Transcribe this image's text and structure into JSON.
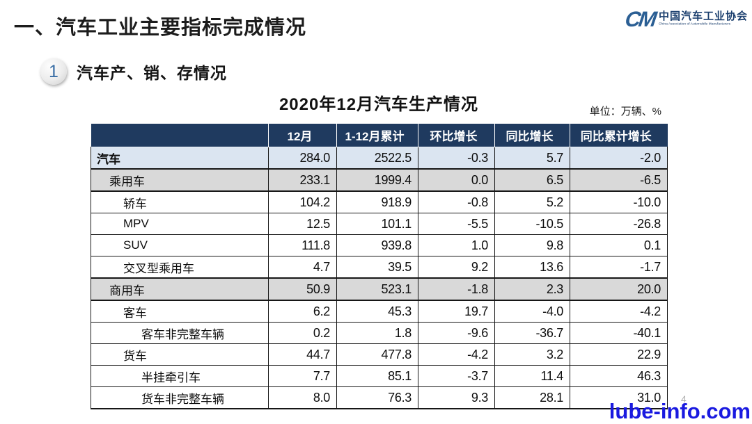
{
  "slide": {
    "title": "一、汽车工业主要指标完成情况",
    "section": {
      "number": "1",
      "title": "汽车产、销、存情况"
    }
  },
  "logo": {
    "mark": "CM",
    "name_cn": "中国汽车工业协会",
    "name_en": "China Association of Automobile Manufacturers"
  },
  "table": {
    "title": "2020年12月汽车生产情况",
    "unit_note": "单位：万辆、%",
    "columns": [
      "",
      "12月",
      "1-12月累计",
      "环比增长",
      "同比增长",
      "同比累计增长"
    ],
    "rows": [
      {
        "label": "汽车",
        "indent": 0,
        "emphasis": "blue",
        "values": [
          "284.0",
          "2522.5",
          "-0.3",
          "5.7",
          "-2.0"
        ]
      },
      {
        "label": "乘用车",
        "indent": 1,
        "emphasis": "gray",
        "values": [
          "233.1",
          "1999.4",
          "0.0",
          "6.5",
          "-6.5"
        ]
      },
      {
        "label": "轿车",
        "indent": 2,
        "emphasis": "",
        "values": [
          "104.2",
          "918.9",
          "-0.8",
          "5.2",
          "-10.0"
        ]
      },
      {
        "label": "MPV",
        "indent": 2,
        "emphasis": "",
        "values": [
          "12.5",
          "101.1",
          "-5.5",
          "-10.5",
          "-26.8"
        ]
      },
      {
        "label": "SUV",
        "indent": 2,
        "emphasis": "",
        "values": [
          "111.8",
          "939.8",
          "1.0",
          "9.8",
          "0.1"
        ]
      },
      {
        "label": "交叉型乘用车",
        "indent": 2,
        "emphasis": "",
        "values": [
          "4.7",
          "39.5",
          "9.2",
          "13.6",
          "-1.7"
        ]
      },
      {
        "label": "商用车",
        "indent": 1,
        "emphasis": "gray",
        "values": [
          "50.9",
          "523.1",
          "-1.8",
          "2.3",
          "20.0"
        ]
      },
      {
        "label": "客车",
        "indent": 2,
        "emphasis": "",
        "values": [
          "6.2",
          "45.3",
          "19.7",
          "-4.0",
          "-4.2"
        ]
      },
      {
        "label": "客车非完整车辆",
        "indent": 3,
        "emphasis": "",
        "values": [
          "0.2",
          "1.8",
          "-9.6",
          "-36.7",
          "-40.1"
        ]
      },
      {
        "label": "货车",
        "indent": 2,
        "emphasis": "",
        "values": [
          "44.7",
          "477.8",
          "-4.2",
          "3.2",
          "22.9"
        ]
      },
      {
        "label": "半挂牵引车",
        "indent": 3,
        "emphasis": "",
        "values": [
          "7.7",
          "85.1",
          "-3.7",
          "11.4",
          "46.3"
        ]
      },
      {
        "label": "货车非完整车辆",
        "indent": 3,
        "emphasis": "",
        "values": [
          "8.0",
          "76.3",
          "9.3",
          "28.1",
          "31.0"
        ]
      }
    ]
  },
  "footer": {
    "page_number": "4",
    "watermark": "lube-info.com"
  },
  "colors": {
    "header_bg": "#1f3a5f",
    "row_blue": "#dbe5f1",
    "row_gray": "#d9d9d9",
    "logo_blue": "#2b5f94",
    "watermark_blue": "#1a1ae0"
  }
}
